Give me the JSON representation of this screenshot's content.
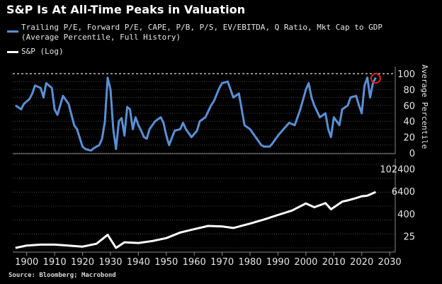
{
  "chart_data": [
    {
      "type": "line",
      "title": "S&P Is At All-Time Peaks in Valuation",
      "series": [
        {
          "name": "Trailing P/E, Forward P/E, CAPE, P/B, P/S, EV/EBITDA, Q Ratio, Mkt Cap to GDP (Average Percentile, Full History)",
          "color": "#5b8fd4",
          "x": [
            1896,
            1898,
            1899,
            1901,
            1902,
            1903,
            1905,
            1906,
            1907,
            1909,
            1910,
            1911,
            1913,
            1915,
            1917,
            1918,
            1920,
            1921,
            1922,
            1923,
            1924,
            1926,
            1927,
            1928,
            1929,
            1930,
            1931,
            1932,
            1933,
            1934,
            1935,
            1936,
            1937,
            1938,
            1939,
            1940,
            1941,
            1942,
            1943,
            1944,
            1946,
            1948,
            1949,
            1950,
            1951,
            1953,
            1955,
            1956,
            1957,
            1959,
            1961,
            1962,
            1964,
            1966,
            1967,
            1969,
            1970,
            1972,
            1974,
            1976,
            1978,
            1980,
            1982,
            1983,
            1984,
            1985,
            1987,
            1988,
            1990,
            1992,
            1994,
            1996,
            1998,
            2000,
            2001,
            2002,
            2003,
            2005,
            2007,
            2008,
            2009,
            2010,
            2012,
            2013,
            2015,
            2016,
            2018,
            2019,
            2020,
            2021,
            2022,
            2023,
            2024,
            2025
          ],
          "values": [
            60,
            55,
            62,
            68,
            75,
            85,
            82,
            70,
            88,
            82,
            55,
            48,
            72,
            62,
            35,
            30,
            8,
            5,
            4,
            3,
            6,
            10,
            18,
            40,
            95,
            80,
            30,
            5,
            40,
            44,
            22,
            58,
            55,
            30,
            45,
            35,
            28,
            20,
            18,
            30,
            40,
            45,
            38,
            22,
            10,
            28,
            30,
            38,
            30,
            20,
            28,
            40,
            45,
            60,
            65,
            82,
            88,
            90,
            70,
            75,
            35,
            30,
            20,
            15,
            10,
            8,
            8,
            12,
            22,
            30,
            38,
            35,
            55,
            80,
            88,
            70,
            60,
            45,
            50,
            30,
            20,
            45,
            35,
            55,
            60,
            70,
            72,
            60,
            50,
            85,
            95,
            70,
            88,
            95
          ],
          "axis": "right-top",
          "ylabel": "Average Percentile",
          "ylim": [
            0,
            100
          ],
          "yticks": [
            "0",
            "20",
            "40",
            "60",
            "80",
            "100"
          ],
          "reference_line": 100,
          "annotation": "red circle at latest value (~2025, ~95)"
        },
        {
          "name": "S&P (Log)",
          "color": "#ffffff",
          "x": [
            1896,
            1900,
            1905,
            1910,
            1915,
            1920,
            1925,
            1929,
            1932,
            1935,
            1940,
            1945,
            1950,
            1955,
            1960,
            1965,
            1970,
            1974,
            1980,
            1985,
            1990,
            1995,
            2000,
            2003,
            2007,
            2009,
            2013,
            2015,
            2018,
            2020,
            2022,
            2025
          ],
          "values": [
            6,
            8,
            9,
            9,
            8,
            7,
            10,
            30,
            6,
            12,
            11,
            14,
            20,
            40,
            60,
            90,
            85,
            70,
            120,
            200,
            350,
            600,
            1450,
            900,
            1500,
            700,
            1800,
            2100,
            2800,
            3500,
            3800,
            5900
          ],
          "axis": "right-bottom",
          "ylabel": "",
          "scale": "log",
          "ylim": [
            6,
            180000
          ],
          "yticks": [
            "25",
            "400",
            "6400",
            "102400"
          ]
        }
      ],
      "xlabel": "",
      "xlim": [
        1895,
        2032
      ],
      "xticks": [
        "1900",
        "1910",
        "1920",
        "1930",
        "1940",
        "1950",
        "1960",
        "1970",
        "1980",
        "1990",
        "2000",
        "2010",
        "2020",
        "2030"
      ],
      "grid": "dotted horizontal",
      "legend": "top-left"
    }
  ],
  "header": {
    "title": "S&P Is At All-Time Peaks in Valuation",
    "legend": {
      "series1_line1": "Trailing P/E, Forward P/E, CAPE, P/B, P/S, EV/EBITDA, Q Ratio, Mkt Cap to GDP",
      "series1_line2": "(Average Percentile, Full History)",
      "series2": "S&P (Log)"
    }
  },
  "axes": {
    "top_ylabel": "Average Percentile"
  },
  "footer": {
    "source": "Source: Bloomberg; Macrobond"
  },
  "colors": {
    "background": "#000000",
    "valuation_line": "#5b8fd4",
    "sp_line": "#ffffff",
    "annotation_circle": "#e02020",
    "grid": "#555555"
  }
}
